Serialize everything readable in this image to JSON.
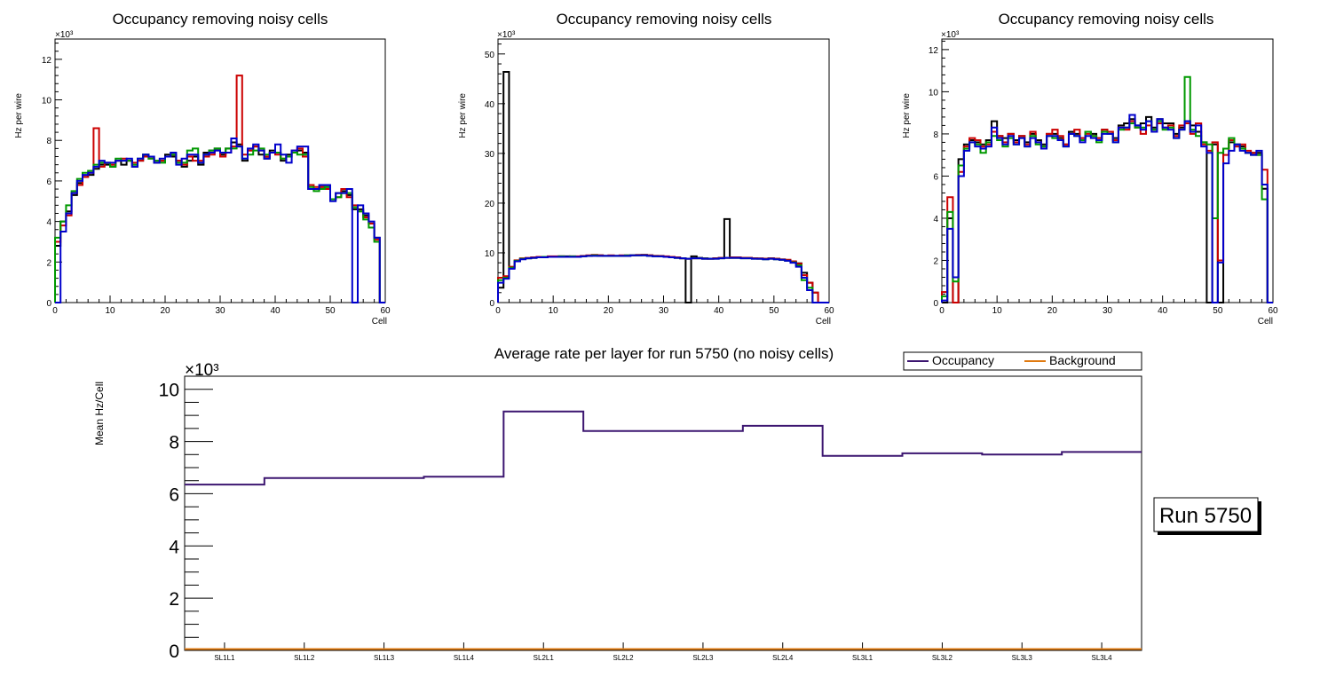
{
  "chart_data": [
    {
      "type": "line",
      "title": "Occupancy removing noisy cells",
      "xlabel": "Cell",
      "ylabel": "Hz per wire",
      "exponent": "×10³",
      "xlim": [
        0,
        60
      ],
      "ylim": [
        0,
        13
      ],
      "xticks": [
        0,
        10,
        20,
        30,
        40,
        50,
        60
      ],
      "yticks": [
        0,
        2,
        4,
        6,
        8,
        10,
        12
      ],
      "series": [
        {
          "name": "black",
          "color": "#000000",
          "values": [
            2.8,
            4.0,
            4.5,
            5.3,
            5.9,
            6.2,
            6.3,
            6.6,
            6.8,
            6.8,
            6.7,
            7.0,
            6.8,
            7.0,
            6.7,
            7.0,
            7.3,
            7.2,
            6.9,
            7.0,
            7.3,
            7.2,
            7.0,
            6.7,
            7.0,
            7.2,
            6.8,
            7.4,
            7.5,
            7.6,
            7.3,
            7.6,
            7.9,
            7.8,
            7.0,
            7.5,
            7.7,
            7.3,
            7.1,
            7.5,
            7.4,
            7.0,
            7.3,
            7.4,
            7.5,
            7.4,
            5.6,
            5.6,
            5.7,
            5.7,
            5.1,
            5.4,
            5.5,
            5.3,
            4.6,
            4.6,
            4.3,
            3.9,
            3.2,
            0
          ]
        },
        {
          "name": "red",
          "color": "#cc0000",
          "values": [
            3.0,
            3.8,
            4.3,
            5.4,
            5.8,
            6.2,
            6.4,
            8.6,
            6.7,
            6.9,
            6.8,
            7.0,
            7.1,
            7.0,
            6.9,
            7.0,
            7.2,
            7.1,
            7.0,
            7.0,
            7.2,
            7.3,
            7.0,
            6.8,
            7.2,
            7.0,
            7.0,
            7.2,
            7.3,
            7.5,
            7.2,
            7.4,
            7.7,
            11.2,
            7.3,
            7.5,
            7.7,
            7.5,
            7.2,
            7.4,
            7.3,
            7.1,
            7.2,
            7.5,
            7.6,
            7.2,
            5.8,
            5.7,
            5.7,
            5.6,
            5.1,
            5.2,
            5.6,
            5.2,
            4.8,
            4.5,
            4.2,
            3.9,
            3.1,
            0
          ]
        },
        {
          "name": "green",
          "color": "#009900",
          "values": [
            3.2,
            4.0,
            4.8,
            5.5,
            6.1,
            6.4,
            6.5,
            6.8,
            6.9,
            6.9,
            6.7,
            7.1,
            7.0,
            7.0,
            6.8,
            7.1,
            7.3,
            7.1,
            7.0,
            6.9,
            7.2,
            7.3,
            6.9,
            6.9,
            7.5,
            7.6,
            6.9,
            7.3,
            7.5,
            7.6,
            7.4,
            7.6,
            7.6,
            7.7,
            7.1,
            7.3,
            7.5,
            7.6,
            7.3,
            7.4,
            7.4,
            7.1,
            7.2,
            7.4,
            7.3,
            7.3,
            5.7,
            5.5,
            5.6,
            5.7,
            5.1,
            5.2,
            5.4,
            5.4,
            4.7,
            4.5,
            4.1,
            3.7,
            3.0,
            0
          ]
        },
        {
          "name": "blue",
          "color": "#0000cc",
          "values": [
            0,
            3.5,
            4.4,
            5.4,
            6.0,
            6.3,
            6.4,
            6.7,
            7.0,
            6.9,
            6.9,
            7.0,
            7.0,
            7.1,
            6.7,
            7.1,
            7.3,
            7.2,
            6.9,
            7.1,
            7.2,
            7.4,
            6.8,
            7.1,
            7.3,
            7.3,
            6.9,
            7.3,
            7.4,
            7.5,
            7.4,
            7.4,
            8.1,
            7.7,
            7.1,
            7.6,
            7.8,
            7.5,
            7.1,
            7.4,
            7.8,
            7.3,
            6.9,
            7.5,
            7.7,
            7.7,
            5.6,
            5.6,
            5.8,
            5.8,
            5.0,
            5.4,
            5.4,
            5.6,
            0,
            4.8,
            4.4,
            4.0,
            3.2,
            0
          ]
        }
      ]
    },
    {
      "type": "line",
      "title": "Occupancy removing noisy cells",
      "xlabel": "Cell",
      "ylabel": "Hz per wire",
      "exponent": "×10³",
      "xlim": [
        0,
        60
      ],
      "ylim": [
        0,
        53
      ],
      "xticks": [
        0,
        10,
        20,
        30,
        40,
        50,
        60
      ],
      "yticks": [
        0,
        10,
        20,
        30,
        40,
        50
      ],
      "series": [
        {
          "name": "black",
          "color": "#000000",
          "values": [
            3.0,
            46.4,
            7.0,
            8.3,
            8.8,
            8.9,
            9.0,
            9.1,
            9.2,
            9.2,
            9.2,
            9.3,
            9.3,
            9.2,
            9.2,
            9.3,
            9.4,
            9.5,
            9.5,
            9.4,
            9.4,
            9.4,
            9.4,
            9.4,
            9.5,
            9.5,
            9.6,
            9.5,
            9.4,
            9.3,
            9.2,
            9.1,
            9.0,
            8.9,
            0,
            9.3,
            9.0,
            8.9,
            8.8,
            8.9,
            9.0,
            16.8,
            9.0,
            9.0,
            9.0,
            9.0,
            8.9,
            8.8,
            8.8,
            8.9,
            8.8,
            8.6,
            8.5,
            8.2,
            7.9,
            6.0,
            4.0,
            2.0,
            0,
            0
          ]
        },
        {
          "name": "red",
          "color": "#cc0000",
          "values": [
            5.0,
            5.3,
            7.2,
            8.5,
            8.9,
            9.0,
            9.1,
            9.2,
            9.2,
            9.3,
            9.3,
            9.3,
            9.2,
            9.3,
            9.3,
            9.4,
            9.5,
            9.6,
            9.5,
            9.4,
            9.5,
            9.4,
            9.5,
            9.5,
            9.5,
            9.6,
            9.6,
            9.5,
            9.4,
            9.4,
            9.3,
            9.2,
            9.1,
            8.9,
            8.8,
            8.9,
            8.9,
            8.8,
            8.8,
            8.9,
            9.0,
            9.0,
            9.1,
            9.1,
            9.0,
            9.0,
            8.9,
            8.9,
            8.8,
            8.9,
            8.8,
            8.7,
            8.6,
            8.3,
            7.8,
            5.5,
            4.0,
            2.0,
            0,
            0
          ]
        },
        {
          "name": "green",
          "color": "#009900",
          "values": [
            4.5,
            5.0,
            7.0,
            8.4,
            8.8,
            8.9,
            9.0,
            9.1,
            9.2,
            9.2,
            9.2,
            9.3,
            9.2,
            9.3,
            9.2,
            9.3,
            9.4,
            9.5,
            9.4,
            9.4,
            9.4,
            9.4,
            9.4,
            9.5,
            9.5,
            9.5,
            9.5,
            9.4,
            9.3,
            9.3,
            9.2,
            9.1,
            9.0,
            8.9,
            8.8,
            8.9,
            8.9,
            8.8,
            8.8,
            8.8,
            8.9,
            9.0,
            9.0,
            9.0,
            8.9,
            8.9,
            8.8,
            8.8,
            8.7,
            8.8,
            8.7,
            8.6,
            8.4,
            8.1,
            7.5,
            4.5,
            3.0,
            0,
            0,
            0
          ]
        },
        {
          "name": "blue",
          "color": "#0000cc",
          "values": [
            4.0,
            4.8,
            6.8,
            8.3,
            8.7,
            8.9,
            9.0,
            9.1,
            9.1,
            9.2,
            9.2,
            9.2,
            9.2,
            9.2,
            9.2,
            9.3,
            9.4,
            9.4,
            9.4,
            9.4,
            9.4,
            9.4,
            9.4,
            9.4,
            9.5,
            9.5,
            9.5,
            9.4,
            9.3,
            9.3,
            9.2,
            9.1,
            9.0,
            8.9,
            8.8,
            8.9,
            8.9,
            8.8,
            8.8,
            8.8,
            8.9,
            9.0,
            9.0,
            9.0,
            8.9,
            8.9,
            8.8,
            8.8,
            8.7,
            8.8,
            8.7,
            8.6,
            8.4,
            8.0,
            7.2,
            5.0,
            2.5,
            0,
            0,
            0
          ]
        }
      ]
    },
    {
      "type": "line",
      "title": "Occupancy removing noisy cells",
      "xlabel": "Cell",
      "ylabel": "Hz per wire",
      "exponent": "×10³",
      "xlim": [
        0,
        60
      ],
      "ylim": [
        0,
        12.5
      ],
      "xticks": [
        0,
        10,
        20,
        30,
        40,
        50,
        60
      ],
      "yticks": [
        0,
        2,
        4,
        6,
        8,
        10,
        12
      ],
      "series": [
        {
          "name": "black",
          "color": "#000000",
          "values": [
            0,
            4.0,
            0,
            6.8,
            7.5,
            7.7,
            7.6,
            7.5,
            7.7,
            8.6,
            7.9,
            7.8,
            8.0,
            7.7,
            7.9,
            7.6,
            8.0,
            7.7,
            7.5,
            8.0,
            8.0,
            7.8,
            7.5,
            8.1,
            8.0,
            7.8,
            8.1,
            8.0,
            7.8,
            8.2,
            8.1,
            7.8,
            8.4,
            8.5,
            8.7,
            8.4,
            8.5,
            8.8,
            8.3,
            8.7,
            8.5,
            8.5,
            8.0,
            8.3,
            8.6,
            8.4,
            8.1,
            7.6,
            0,
            7.5,
            0,
            7.3,
            7.6,
            7.5,
            7.4,
            7.1,
            7.1,
            7.1,
            5.4,
            0
          ]
        },
        {
          "name": "red",
          "color": "#cc0000",
          "values": [
            0.5,
            5.0,
            0,
            6.2,
            7.4,
            7.8,
            7.7,
            7.4,
            7.5,
            8.1,
            7.9,
            7.6,
            8.0,
            7.6,
            7.9,
            7.5,
            8.1,
            7.6,
            7.4,
            8.0,
            8.2,
            7.9,
            7.5,
            8.0,
            8.2,
            7.8,
            8.0,
            7.9,
            7.8,
            8.2,
            8.1,
            7.7,
            8.3,
            8.2,
            8.6,
            8.3,
            8.0,
            8.4,
            8.2,
            8.5,
            8.3,
            8.4,
            7.9,
            8.4,
            8.5,
            8.0,
            8.5,
            7.5,
            7.2,
            7.6,
            2.0,
            7.0,
            7.7,
            7.4,
            7.5,
            7.2,
            7.1,
            7.0,
            6.3,
            0
          ]
        },
        {
          "name": "green",
          "color": "#009900",
          "values": [
            0.3,
            4.3,
            1.0,
            6.5,
            7.3,
            7.6,
            7.5,
            7.1,
            7.6,
            7.9,
            7.7,
            7.4,
            7.8,
            7.5,
            7.8,
            7.4,
            7.9,
            7.5,
            7.4,
            7.9,
            7.8,
            7.7,
            7.4,
            8.0,
            7.9,
            7.7,
            8.1,
            7.9,
            7.6,
            8.1,
            8.0,
            7.6,
            8.2,
            8.3,
            8.5,
            8.3,
            8.3,
            8.6,
            8.2,
            8.6,
            8.2,
            8.3,
            7.8,
            8.2,
            10.7,
            8.2,
            7.9,
            7.6,
            7.5,
            4.0,
            7.1,
            7.3,
            7.8,
            7.5,
            7.3,
            7.1,
            7.0,
            7.0,
            4.9,
            0
          ]
        },
        {
          "name": "blue",
          "color": "#0000cc",
          "values": [
            0.1,
            3.5,
            1.2,
            6.0,
            7.2,
            7.6,
            7.4,
            7.3,
            7.4,
            8.3,
            7.8,
            7.5,
            7.9,
            7.5,
            7.8,
            7.4,
            7.8,
            7.6,
            7.3,
            7.9,
            7.9,
            7.7,
            7.4,
            8.0,
            7.9,
            7.6,
            7.9,
            7.8,
            7.7,
            8.0,
            8.0,
            7.6,
            8.3,
            8.3,
            8.9,
            8.4,
            8.2,
            8.6,
            8.1,
            8.7,
            8.3,
            8.2,
            7.8,
            8.2,
            8.6,
            8.1,
            8.4,
            7.4,
            7.1,
            0,
            1.9,
            6.6,
            7.2,
            7.5,
            7.2,
            7.1,
            7.0,
            7.2,
            5.6,
            0
          ]
        }
      ]
    },
    {
      "type": "line",
      "title": "Average rate per layer for run 5750 (no noisy cells)",
      "xlabel": "",
      "ylabel": "Mean Hz/Cell",
      "exponent": "×10³",
      "ylim": [
        0,
        10.5
      ],
      "yticks": [
        0,
        2,
        4,
        6,
        8,
        10
      ],
      "categories": [
        "SL1L1",
        "SL1L2",
        "SL1L3",
        "SL1L4",
        "SL2L1",
        "SL2L2",
        "SL2L3",
        "SL2L4",
        "SL3L1",
        "SL3L2",
        "SL3L3",
        "SL3L4"
      ],
      "series": [
        {
          "name": "Occupancy",
          "color": "#3c1670",
          "values": [
            6.35,
            6.6,
            6.6,
            6.65,
            9.15,
            8.4,
            8.4,
            8.6,
            7.45,
            7.55,
            7.5,
            7.6
          ]
        },
        {
          "name": "Background",
          "color": "#e07a10",
          "values": [
            0.05,
            0.05,
            0.05,
            0.05,
            0.05,
            0.05,
            0.05,
            0.05,
            0.05,
            0.05,
            0.05,
            0.05
          ]
        }
      ],
      "legend": [
        "Occupancy",
        "Background"
      ],
      "run_label": "Run 5750"
    }
  ]
}
